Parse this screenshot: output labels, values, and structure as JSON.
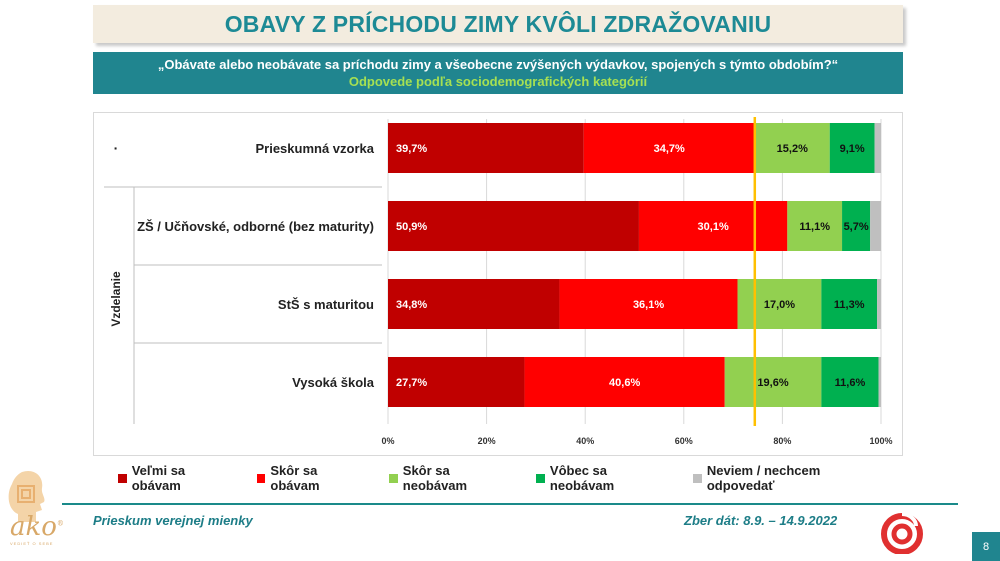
{
  "header": {
    "title": "OBAVY Z PRÍCHODU ZIMY KVÔLI ZDRAŽOVANIU",
    "question": "„Obávate alebo neobávate sa príchodu zimy a všeobecne zvýšených výdavkov, spojených s týmto obdobím?“",
    "subtitle": "Odpovede podľa sociodemografických kategórií"
  },
  "chart_data": {
    "type": "bar",
    "orientation": "horizontal",
    "stacked": true,
    "group_label": "Vzdelanie",
    "bullet": "·",
    "categories": [
      "Prieskumná vzorka",
      "ZŠ / Učňovské, odborné (bez maturity)",
      "StŠ s maturitou",
      "Vysoká škola"
    ],
    "series": [
      {
        "name": "Veľmi sa obávam",
        "color": "#c00000",
        "values": [
          39.7,
          50.9,
          34.8,
          27.7
        ],
        "labels": [
          "39,7%",
          "50,9%",
          "34,8%",
          "27,7%"
        ]
      },
      {
        "name": "Skôr sa obávam",
        "color": "#ff0000",
        "values": [
          34.7,
          30.1,
          36.1,
          40.6
        ],
        "labels": [
          "34,7%",
          "30,1%",
          "36,1%",
          "40,6%"
        ]
      },
      {
        "name": "Skôr sa neobávam",
        "color": "#92d050",
        "values": [
          15.2,
          11.1,
          17.0,
          19.6
        ],
        "labels": [
          "15,2%",
          "11,1%",
          "17,0%",
          "19,6%"
        ]
      },
      {
        "name": "Vôbec sa neobávam",
        "color": "#00b050",
        "values": [
          9.1,
          5.7,
          11.3,
          11.6
        ],
        "labels": [
          "9,1%",
          "5,7%",
          "11,3%",
          "11,6%"
        ]
      },
      {
        "name": "Neviem / nechcem odpovedať",
        "color": "#bfbfbf",
        "values": [
          1.3,
          2.2,
          0.8,
          0.5
        ],
        "labels": [
          "",
          "",
          "",
          ""
        ]
      }
    ],
    "xlim": [
      0,
      100
    ],
    "xticks": [
      "0%",
      "20%",
      "40%",
      "60%",
      "80%",
      "100%"
    ],
    "reference_line": 74.4,
    "reference_color": "#ffc000",
    "grid": true
  },
  "legend": [
    {
      "label": "Veľmi sa obávam",
      "color": "#c00000"
    },
    {
      "label": "Skôr sa obávam",
      "color": "#ff0000"
    },
    {
      "label": "Skôr sa neobávam",
      "color": "#92d050"
    },
    {
      "label": "Vôbec sa neobávam",
      "color": "#00b050"
    },
    {
      "label": "Neviem / nechcem odpovedať",
      "color": "#bfbfbf"
    }
  ],
  "footer": {
    "left": "Prieskum verejnej mienky",
    "right": "Zber dát: 8.9. – 14.9.2022",
    "page": "8"
  },
  "logo": {
    "name": "ako",
    "tagline": "VEDIEŤ O SEBE",
    "registered": "®"
  }
}
